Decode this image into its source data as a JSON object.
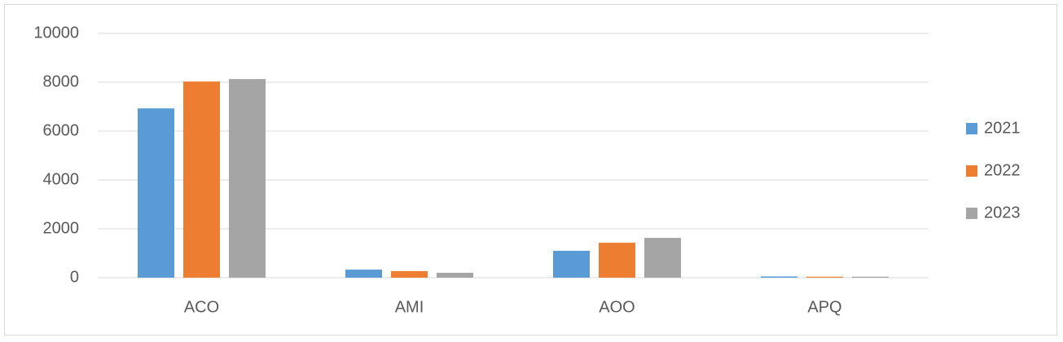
{
  "chart_data": {
    "type": "bar",
    "categories": [
      "ACO",
      "AMI",
      "AOO",
      "APQ"
    ],
    "series": [
      {
        "name": "2021",
        "color": "#5b9bd5",
        "values": [
          6930,
          330,
          1100,
          50
        ]
      },
      {
        "name": "2022",
        "color": "#ed7d31",
        "values": [
          8030,
          270,
          1430,
          40
        ]
      },
      {
        "name": "2023",
        "color": "#a5a5a5",
        "values": [
          8130,
          200,
          1630,
          40
        ]
      }
    ],
    "ylim": [
      0,
      10000
    ],
    "yticks": [
      0,
      2000,
      4000,
      6000,
      8000,
      10000
    ],
    "grid": true,
    "legend": "right"
  }
}
